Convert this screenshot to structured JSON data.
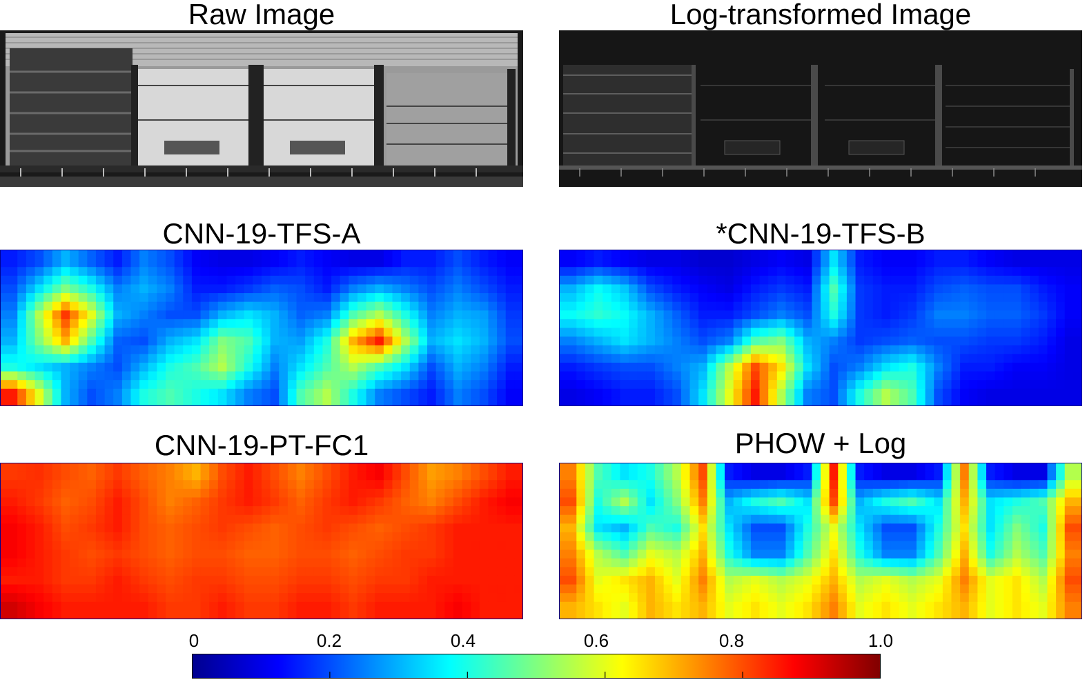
{
  "figure": {
    "panels": [
      {
        "id": "raw",
        "title": "Raw Image",
        "kind": "xray-raw"
      },
      {
        "id": "log",
        "title": "Log-transformed Image",
        "kind": "xray-log"
      },
      {
        "id": "tfs_a",
        "title": "CNN-19-TFS-A",
        "kind": "heatmap"
      },
      {
        "id": "tfs_b",
        "title": "*CNN-19-TFS-B",
        "kind": "heatmap"
      },
      {
        "id": "pt_fc1",
        "title": "CNN-19-PT-FC1",
        "kind": "heatmap"
      },
      {
        "id": "phow",
        "title": "PHOW + Log",
        "kind": "heatmap"
      }
    ]
  },
  "chart_data": {
    "type": "heatmap",
    "colormap": "jet",
    "colorbar": {
      "range": [
        0,
        1.0
      ],
      "ticks": [
        0,
        0.2,
        0.4,
        0.6,
        0.8,
        1.0
      ],
      "tick_labels": [
        "0",
        "0.2",
        "0.4",
        "0.6",
        "0.8",
        "1.0"
      ]
    },
    "heatmaps": [
      {
        "title": "CNN-19-TFS-A",
        "grid": [
          [
            0.15,
            0.2,
            0.3,
            0.22,
            0.15,
            0.25,
            0.2,
            0.12,
            0.1,
            0.1,
            0.12,
            0.15,
            0.12,
            0.1,
            0.1,
            0.15,
            0.15,
            0.2,
            0.15,
            0.12
          ],
          [
            0.2,
            0.35,
            0.5,
            0.4,
            0.25,
            0.3,
            0.25,
            0.15,
            0.15,
            0.18,
            0.22,
            0.2,
            0.15,
            0.25,
            0.3,
            0.25,
            0.2,
            0.25,
            0.2,
            0.15
          ],
          [
            0.25,
            0.55,
            0.82,
            0.6,
            0.3,
            0.25,
            0.2,
            0.2,
            0.3,
            0.35,
            0.3,
            0.22,
            0.25,
            0.45,
            0.55,
            0.4,
            0.25,
            0.3,
            0.28,
            0.18
          ],
          [
            0.3,
            0.5,
            0.7,
            0.45,
            0.22,
            0.2,
            0.3,
            0.35,
            0.5,
            0.45,
            0.3,
            0.28,
            0.4,
            0.7,
            0.85,
            0.55,
            0.3,
            0.35,
            0.3,
            0.2
          ],
          [
            0.4,
            0.35,
            0.3,
            0.25,
            0.2,
            0.3,
            0.4,
            0.45,
            0.55,
            0.4,
            0.25,
            0.35,
            0.45,
            0.55,
            0.45,
            0.35,
            0.2,
            0.3,
            0.25,
            0.15
          ],
          [
            0.85,
            0.6,
            0.3,
            0.2,
            0.25,
            0.4,
            0.45,
            0.4,
            0.35,
            0.25,
            0.2,
            0.45,
            0.55,
            0.4,
            0.25,
            0.2,
            0.15,
            0.25,
            0.2,
            0.12
          ]
        ]
      },
      {
        "title": "*CNN-19-TFS-B",
        "grid": [
          [
            0.12,
            0.15,
            0.12,
            0.1,
            0.1,
            0.08,
            0.08,
            0.1,
            0.12,
            0.1,
            0.35,
            0.15,
            0.12,
            0.12,
            0.15,
            0.15,
            0.12,
            0.1,
            0.1,
            0.1
          ],
          [
            0.3,
            0.38,
            0.32,
            0.2,
            0.15,
            0.12,
            0.1,
            0.15,
            0.18,
            0.15,
            0.45,
            0.18,
            0.15,
            0.15,
            0.2,
            0.22,
            0.2,
            0.2,
            0.15,
            0.12
          ],
          [
            0.38,
            0.42,
            0.38,
            0.3,
            0.22,
            0.15,
            0.15,
            0.2,
            0.25,
            0.2,
            0.4,
            0.18,
            0.15,
            0.18,
            0.25,
            0.25,
            0.22,
            0.22,
            0.18,
            0.12
          ],
          [
            0.25,
            0.3,
            0.35,
            0.3,
            0.25,
            0.2,
            0.25,
            0.45,
            0.5,
            0.3,
            0.25,
            0.18,
            0.2,
            0.22,
            0.2,
            0.2,
            0.18,
            0.18,
            0.15,
            0.1
          ],
          [
            0.15,
            0.18,
            0.2,
            0.2,
            0.25,
            0.3,
            0.55,
            0.8,
            0.65,
            0.35,
            0.2,
            0.25,
            0.35,
            0.4,
            0.25,
            0.15,
            0.15,
            0.12,
            0.12,
            0.1
          ],
          [
            0.1,
            0.12,
            0.15,
            0.15,
            0.2,
            0.35,
            0.6,
            0.85,
            0.55,
            0.25,
            0.2,
            0.4,
            0.55,
            0.45,
            0.2,
            0.12,
            0.1,
            0.1,
            0.1,
            0.1
          ]
        ]
      },
      {
        "title": "CNN-19-PT-FC1",
        "grid": [
          [
            0.82,
            0.83,
            0.8,
            0.78,
            0.82,
            0.78,
            0.75,
            0.7,
            0.8,
            0.85,
            0.8,
            0.75,
            0.8,
            0.85,
            0.88,
            0.8,
            0.72,
            0.75,
            0.8,
            0.85
          ],
          [
            0.85,
            0.82,
            0.78,
            0.8,
            0.85,
            0.8,
            0.75,
            0.78,
            0.82,
            0.85,
            0.82,
            0.78,
            0.82,
            0.85,
            0.82,
            0.78,
            0.75,
            0.8,
            0.85,
            0.88
          ],
          [
            0.88,
            0.85,
            0.8,
            0.82,
            0.85,
            0.8,
            0.78,
            0.8,
            0.82,
            0.8,
            0.78,
            0.8,
            0.82,
            0.8,
            0.78,
            0.8,
            0.82,
            0.85,
            0.85,
            0.85
          ],
          [
            0.88,
            0.85,
            0.82,
            0.8,
            0.82,
            0.8,
            0.78,
            0.8,
            0.8,
            0.78,
            0.78,
            0.8,
            0.8,
            0.78,
            0.8,
            0.82,
            0.82,
            0.85,
            0.85,
            0.85
          ],
          [
            0.85,
            0.85,
            0.82,
            0.82,
            0.85,
            0.82,
            0.8,
            0.82,
            0.82,
            0.8,
            0.8,
            0.82,
            0.82,
            0.8,
            0.82,
            0.82,
            0.85,
            0.85,
            0.85,
            0.85
          ],
          [
            0.92,
            0.88,
            0.85,
            0.85,
            0.85,
            0.85,
            0.82,
            0.82,
            0.85,
            0.82,
            0.82,
            0.85,
            0.85,
            0.82,
            0.85,
            0.85,
            0.85,
            0.88,
            0.85,
            0.85
          ]
        ]
      },
      {
        "title": "PHOW + Log",
        "grid": [
          [
            0.75,
            0.45,
            0.35,
            0.4,
            0.55,
            0.8,
            0.15,
            0.1,
            0.1,
            0.15,
            0.85,
            0.15,
            0.1,
            0.1,
            0.15,
            0.75,
            0.15,
            0.1,
            0.1,
            0.55
          ],
          [
            0.8,
            0.4,
            0.55,
            0.35,
            0.5,
            0.75,
            0.3,
            0.4,
            0.45,
            0.35,
            0.8,
            0.3,
            0.4,
            0.45,
            0.35,
            0.7,
            0.35,
            0.4,
            0.45,
            0.7
          ],
          [
            0.7,
            0.35,
            0.3,
            0.45,
            0.4,
            0.65,
            0.35,
            0.2,
            0.2,
            0.4,
            0.6,
            0.35,
            0.2,
            0.2,
            0.4,
            0.65,
            0.35,
            0.5,
            0.4,
            0.8
          ],
          [
            0.75,
            0.55,
            0.45,
            0.6,
            0.55,
            0.7,
            0.4,
            0.25,
            0.25,
            0.45,
            0.65,
            0.4,
            0.25,
            0.25,
            0.45,
            0.7,
            0.4,
            0.55,
            0.45,
            0.75
          ],
          [
            0.8,
            0.6,
            0.65,
            0.7,
            0.6,
            0.75,
            0.55,
            0.6,
            0.55,
            0.6,
            0.7,
            0.55,
            0.6,
            0.55,
            0.6,
            0.75,
            0.6,
            0.65,
            0.55,
            0.8
          ],
          [
            0.7,
            0.65,
            0.6,
            0.7,
            0.65,
            0.7,
            0.6,
            0.65,
            0.6,
            0.65,
            0.75,
            0.6,
            0.65,
            0.6,
            0.65,
            0.7,
            0.6,
            0.65,
            0.6,
            0.75
          ]
        ]
      }
    ]
  }
}
